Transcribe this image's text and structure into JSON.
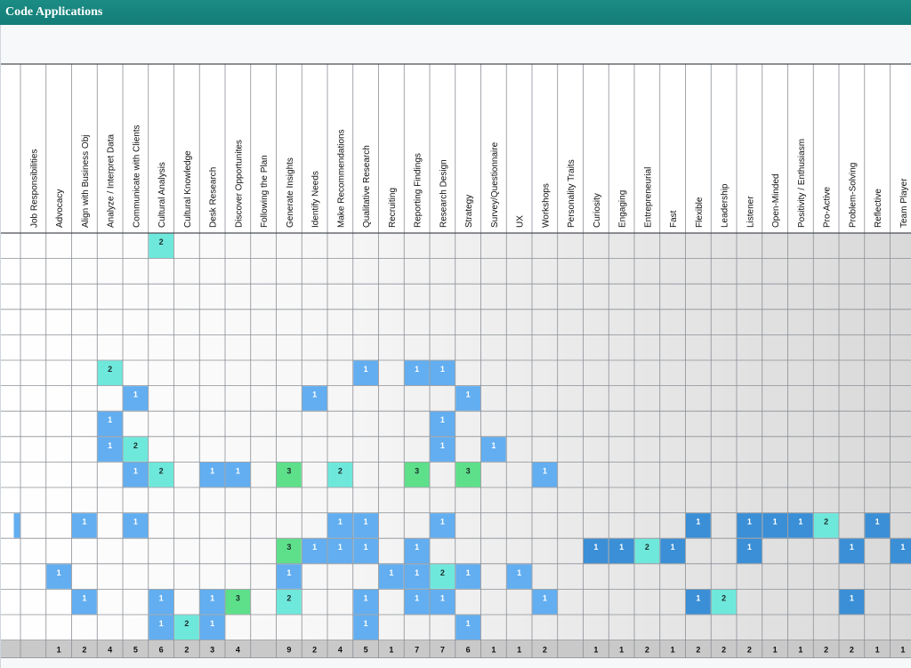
{
  "window": {
    "title": "Code Applications"
  },
  "columns": [
    "Job Responsibilities",
    "Advocacy",
    "Align with Business Obj",
    "Analyze / Interpret Data",
    "Communicate with Clients",
    "Cultural Analysis",
    "Cultural Knowledge",
    "Desk Research",
    "Discover Opportunites",
    "Following the Plan",
    "Generate Insights",
    "Identify Needs",
    "Make Recommendations",
    "Qualitative Research",
    "Recruiting",
    "Reporting Findings",
    "Research Design",
    "Strategy",
    "Survey/Questionnaire",
    "UX",
    "Workshops",
    "Personality Traits",
    "Curiosity",
    "Engaging",
    "Entrepreneurial",
    "Fast",
    "Flexible",
    "Leadership",
    "Listener",
    "Open-Minded",
    "Positivity / Enthusiasm",
    "Pro-Active",
    "Problem-Solving",
    "Reflective",
    "Team Player"
  ],
  "cells": [
    {
      "row": 0,
      "col": 5,
      "value": "2",
      "level": "teal"
    },
    {
      "row": 5,
      "col": 3,
      "value": "2",
      "level": "teal"
    },
    {
      "row": 5,
      "col": 13,
      "value": "1",
      "level": "blue"
    },
    {
      "row": 5,
      "col": 15,
      "value": "1",
      "level": "blue"
    },
    {
      "row": 5,
      "col": 16,
      "value": "1",
      "level": "blue"
    },
    {
      "row": 6,
      "col": 4,
      "value": "1",
      "level": "blue"
    },
    {
      "row": 6,
      "col": 11,
      "value": "1",
      "level": "blue"
    },
    {
      "row": 6,
      "col": 17,
      "value": "1",
      "level": "blue"
    },
    {
      "row": 7,
      "col": 3,
      "value": "1",
      "level": "blue"
    },
    {
      "row": 7,
      "col": 16,
      "value": "1",
      "level": "blue"
    },
    {
      "row": 8,
      "col": 3,
      "value": "1",
      "level": "blue"
    },
    {
      "row": 8,
      "col": 4,
      "value": "2",
      "level": "teal"
    },
    {
      "row": 8,
      "col": 16,
      "value": "1",
      "level": "blue"
    },
    {
      "row": 8,
      "col": 18,
      "value": "1",
      "level": "blue"
    },
    {
      "row": 9,
      "col": 4,
      "value": "1",
      "level": "blue"
    },
    {
      "row": 9,
      "col": 5,
      "value": "2",
      "level": "teal"
    },
    {
      "row": 9,
      "col": 7,
      "value": "1",
      "level": "blue"
    },
    {
      "row": 9,
      "col": 8,
      "value": "1",
      "level": "blue"
    },
    {
      "row": 9,
      "col": 10,
      "value": "3",
      "level": "green"
    },
    {
      "row": 9,
      "col": 12,
      "value": "2",
      "level": "teal"
    },
    {
      "row": 9,
      "col": 15,
      "value": "3",
      "level": "green"
    },
    {
      "row": 9,
      "col": 17,
      "value": "3",
      "level": "green"
    },
    {
      "row": 9,
      "col": 20,
      "value": "1",
      "level": "blue"
    },
    {
      "row": 11,
      "col": 0,
      "value": "",
      "level": "blue"
    },
    {
      "row": 11,
      "col": 2,
      "value": "1",
      "level": "blue"
    },
    {
      "row": 11,
      "col": 4,
      "value": "1",
      "level": "blue"
    },
    {
      "row": 11,
      "col": 12,
      "value": "1",
      "level": "blue"
    },
    {
      "row": 11,
      "col": 13,
      "value": "1",
      "level": "blue"
    },
    {
      "row": 11,
      "col": 16,
      "value": "1",
      "level": "blue"
    },
    {
      "row": 11,
      "col": 26,
      "value": "1",
      "level": "blue"
    },
    {
      "row": 11,
      "col": 28,
      "value": "1",
      "level": "blue"
    },
    {
      "row": 11,
      "col": 29,
      "value": "1",
      "level": "blue"
    },
    {
      "row": 11,
      "col": 30,
      "value": "1",
      "level": "blue"
    },
    {
      "row": 11,
      "col": 31,
      "value": "2",
      "level": "teal"
    },
    {
      "row": 11,
      "col": 33,
      "value": "1",
      "level": "blue"
    },
    {
      "row": 12,
      "col": 10,
      "value": "3",
      "level": "green"
    },
    {
      "row": 12,
      "col": 11,
      "value": "1",
      "level": "blue"
    },
    {
      "row": 12,
      "col": 12,
      "value": "1",
      "level": "blue"
    },
    {
      "row": 12,
      "col": 13,
      "value": "1",
      "level": "blue"
    },
    {
      "row": 12,
      "col": 15,
      "value": "1",
      "level": "blue"
    },
    {
      "row": 12,
      "col": 22,
      "value": "1",
      "level": "blue"
    },
    {
      "row": 12,
      "col": 23,
      "value": "1",
      "level": "blue"
    },
    {
      "row": 12,
      "col": 24,
      "value": "2",
      "level": "teal"
    },
    {
      "row": 12,
      "col": 25,
      "value": "1",
      "level": "blue"
    },
    {
      "row": 12,
      "col": 28,
      "value": "1",
      "level": "blue"
    },
    {
      "row": 12,
      "col": 32,
      "value": "1",
      "level": "blue"
    },
    {
      "row": 12,
      "col": 34,
      "value": "1",
      "level": "blue"
    },
    {
      "row": 13,
      "col": 1,
      "value": "1",
      "level": "blue"
    },
    {
      "row": 13,
      "col": 10,
      "value": "1",
      "level": "blue"
    },
    {
      "row": 13,
      "col": 14,
      "value": "1",
      "level": "blue"
    },
    {
      "row": 13,
      "col": 15,
      "value": "1",
      "level": "blue"
    },
    {
      "row": 13,
      "col": 16,
      "value": "2",
      "level": "teal"
    },
    {
      "row": 13,
      "col": 17,
      "value": "1",
      "level": "blue"
    },
    {
      "row": 13,
      "col": 19,
      "value": "1",
      "level": "blue"
    },
    {
      "row": 14,
      "col": 2,
      "value": "1",
      "level": "blue"
    },
    {
      "row": 14,
      "col": 5,
      "value": "1",
      "level": "blue"
    },
    {
      "row": 14,
      "col": 7,
      "value": "1",
      "level": "blue"
    },
    {
      "row": 14,
      "col": 8,
      "value": "3",
      "level": "green"
    },
    {
      "row": 14,
      "col": 10,
      "value": "2",
      "level": "teal"
    },
    {
      "row": 14,
      "col": 13,
      "value": "1",
      "level": "blue"
    },
    {
      "row": 14,
      "col": 15,
      "value": "1",
      "level": "blue"
    },
    {
      "row": 14,
      "col": 16,
      "value": "1",
      "level": "blue"
    },
    {
      "row": 14,
      "col": 20,
      "value": "1",
      "level": "blue"
    },
    {
      "row": 14,
      "col": 26,
      "value": "1",
      "level": "blue"
    },
    {
      "row": 14,
      "col": 27,
      "value": "2",
      "level": "teal"
    },
    {
      "row": 14,
      "col": 32,
      "value": "1",
      "level": "blue"
    },
    {
      "row": 15,
      "col": 5,
      "value": "1",
      "level": "blue"
    },
    {
      "row": 15,
      "col": 6,
      "value": "2",
      "level": "teal"
    },
    {
      "row": 15,
      "col": 7,
      "value": "1",
      "level": "blue"
    },
    {
      "row": 15,
      "col": 13,
      "value": "1",
      "level": "blue"
    },
    {
      "row": 15,
      "col": 17,
      "value": "1",
      "level": "blue"
    }
  ],
  "totals": [
    "",
    "1",
    "2",
    "4",
    "5",
    "6",
    "2",
    "3",
    "4",
    "",
    "9",
    "2",
    "4",
    "5",
    "1",
    "7",
    "7",
    "6",
    "1",
    "1",
    "2",
    "",
    "1",
    "1",
    "2",
    "1",
    "2",
    "2",
    "2",
    "1",
    "1",
    "2",
    "2",
    "1",
    "1"
  ],
  "colors": {
    "blue": "#62aef0",
    "teal": "#6fe8dc",
    "green": "#5ee08a",
    "deepblue": "#3a8fd6",
    "total_bg": "#c9c9c9",
    "grid_line": "#8c9096"
  }
}
